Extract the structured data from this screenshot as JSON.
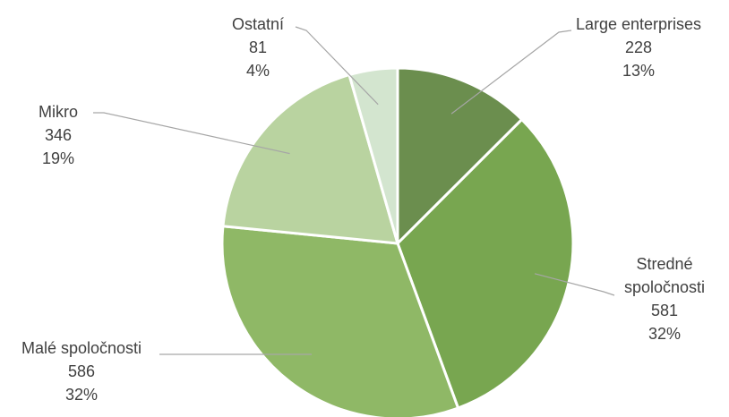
{
  "chart_data": {
    "type": "pie",
    "start_angle_deg": 0,
    "direction": "clockwise",
    "slices": [
      {
        "label": "Large enterprises",
        "value": 228,
        "percent": "13%",
        "color": "#6b8e4e"
      },
      {
        "label": "Stredné spoločnosti",
        "value": 581,
        "percent": "32%",
        "color": "#78a650"
      },
      {
        "label": "Malé spoločnosti",
        "value": 586,
        "percent": "32%",
        "color": "#8fb866"
      },
      {
        "label": "Mikro",
        "value": 346,
        "percent": "19%",
        "color": "#b9d3a0"
      },
      {
        "label": "Ostatní",
        "value": 81,
        "percent": "4%",
        "color": "#d3e5cf"
      }
    ],
    "legend": "none",
    "data_labels": "outside-with-leader-lines"
  }
}
